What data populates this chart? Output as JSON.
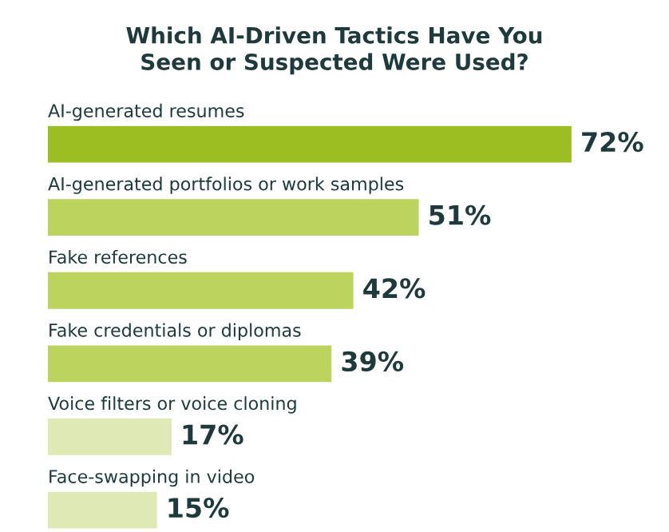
{
  "chart_data": {
    "type": "bar",
    "orientation": "horizontal",
    "title": "Which AI-Driven Tactics Have You\nSeen or Suspected Were Used?",
    "categories": [
      "AI-generated resumes",
      "AI-generated portfolios or work samples",
      "Fake references",
      "Fake credentials or diplomas",
      "Voice filters or voice cloning",
      "Face-swapping in video"
    ],
    "values": [
      72,
      51,
      42,
      39,
      17,
      15
    ],
    "colors": [
      "#9dbe22",
      "#bcd35e",
      "#bcd35e",
      "#bcd35e",
      "#dfe9b6",
      "#dfe9b6"
    ],
    "value_labels": [
      "72%",
      "51%",
      "42%",
      "39%",
      "17%",
      "15%"
    ]
  }
}
